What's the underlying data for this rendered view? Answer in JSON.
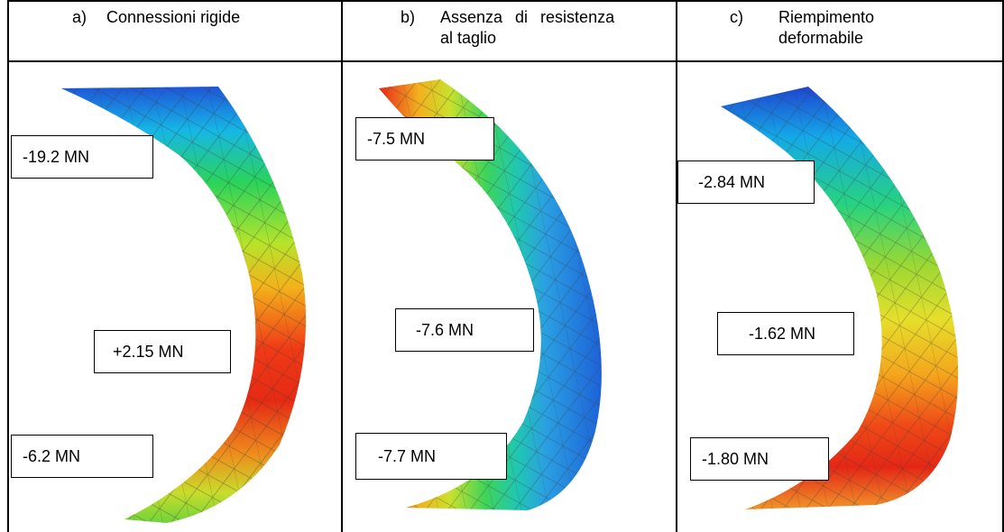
{
  "panels": [
    {
      "letter": "a)",
      "title_lines": [
        "Connessioni rigide"
      ],
      "labels": [
        "-19.2 MN",
        "+2.15 MN",
        "-6.2 MN"
      ]
    },
    {
      "letter": "b)",
      "title_lines": [
        "Assenza di resistenza",
        "al taglio"
      ],
      "labels": [
        "-7.5 MN",
        "-7.6 MN",
        "-7.7 MN"
      ]
    },
    {
      "letter": "c)",
      "title_lines": [
        "Riempimento",
        "deformabile"
      ],
      "labels": [
        "-2.84 MN",
        "-1.62 MN",
        "-1.80 MN"
      ]
    }
  ],
  "colors": {
    "grid": "#000000",
    "background": "#ffffff",
    "mesh": "#3a3a3a"
  }
}
